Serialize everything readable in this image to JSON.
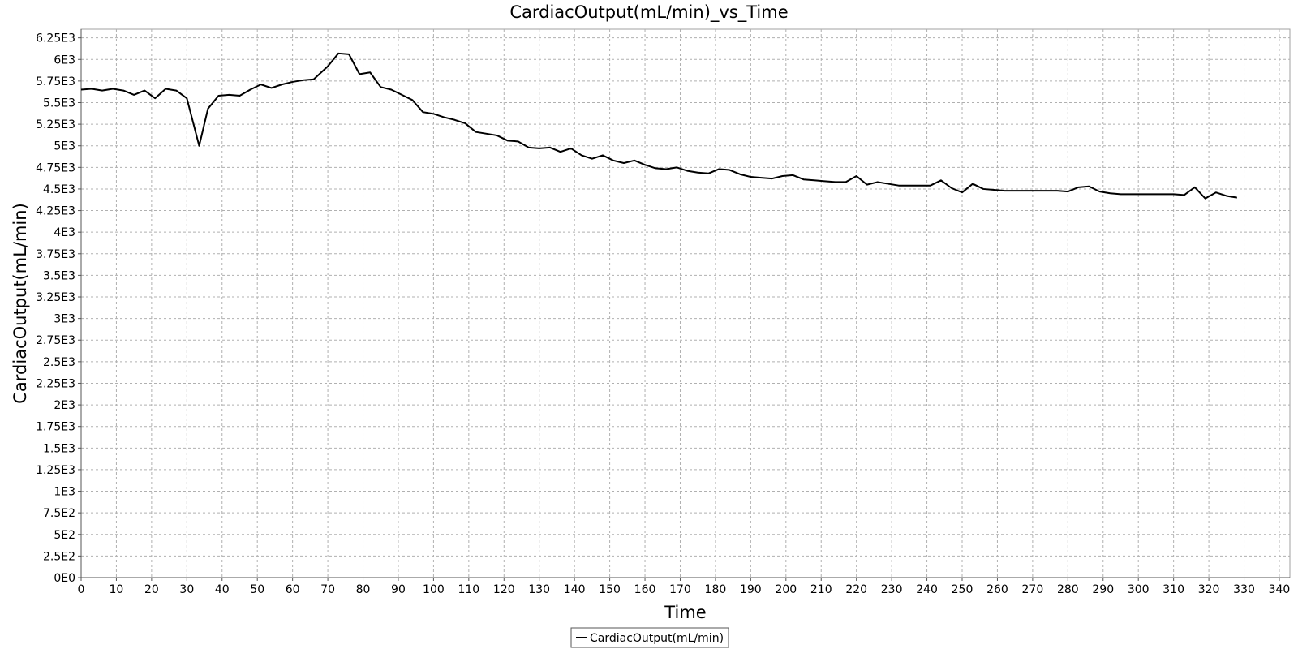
{
  "chart_data": {
    "type": "line",
    "title": "CardiacOutput(mL/min)_vs_Time",
    "xlabel": "Time",
    "ylabel": "CardiacOutput(mL/min)",
    "xlim": [
      0,
      343
    ],
    "ylim": [
      0,
      6350
    ],
    "x_ticks": [
      0,
      10,
      20,
      30,
      40,
      50,
      60,
      70,
      80,
      90,
      100,
      110,
      120,
      130,
      140,
      150,
      160,
      170,
      180,
      190,
      200,
      210,
      220,
      230,
      240,
      250,
      260,
      270,
      280,
      290,
      300,
      310,
      320,
      330,
      340
    ],
    "y_ticks": [
      {
        "value": 0,
        "label": "0E0"
      },
      {
        "value": 250,
        "label": "2.5E2"
      },
      {
        "value": 500,
        "label": "5E2"
      },
      {
        "value": 750,
        "label": "7.5E2"
      },
      {
        "value": 1000,
        "label": "1E3"
      },
      {
        "value": 1250,
        "label": "1.25E3"
      },
      {
        "value": 1500,
        "label": "1.5E3"
      },
      {
        "value": 1750,
        "label": "1.75E3"
      },
      {
        "value": 2000,
        "label": "2E3"
      },
      {
        "value": 2250,
        "label": "2.25E3"
      },
      {
        "value": 2500,
        "label": "2.5E3"
      },
      {
        "value": 2750,
        "label": "2.75E3"
      },
      {
        "value": 3000,
        "label": "3E3"
      },
      {
        "value": 3250,
        "label": "3.25E3"
      },
      {
        "value": 3500,
        "label": "3.5E3"
      },
      {
        "value": 3750,
        "label": "3.75E3"
      },
      {
        "value": 4000,
        "label": "4E3"
      },
      {
        "value": 4250,
        "label": "4.25E3"
      },
      {
        "value": 4500,
        "label": "4.5E3"
      },
      {
        "value": 4750,
        "label": "4.75E3"
      },
      {
        "value": 5000,
        "label": "5E3"
      },
      {
        "value": 5250,
        "label": "5.25E3"
      },
      {
        "value": 5500,
        "label": "5.5E3"
      },
      {
        "value": 5750,
        "label": "5.75E3"
      },
      {
        "value": 6000,
        "label": "6E3"
      },
      {
        "value": 6250,
        "label": "6.25E3"
      }
    ],
    "grid": true,
    "legend_position": "bottom-center",
    "series": [
      {
        "name": "CardiacOutput(mL/min)",
        "color": "#000000",
        "x": [
          0,
          3,
          6,
          9,
          12,
          15,
          18,
          21,
          24,
          27,
          30,
          33.5,
          36,
          39,
          42,
          45,
          48,
          51,
          54,
          57,
          60,
          63,
          66,
          70,
          73,
          76,
          79,
          82,
          85,
          88,
          91,
          94,
          97,
          100,
          103,
          106,
          109,
          112,
          115,
          118,
          121,
          124,
          127,
          130,
          133,
          136,
          139,
          142,
          145,
          148,
          151,
          154,
          157,
          160,
          163,
          166,
          169,
          172,
          175,
          178,
          181,
          184,
          187,
          190,
          193,
          196,
          199,
          202,
          205,
          208,
          211,
          214,
          217,
          220,
          223,
          226,
          229,
          232,
          235,
          238,
          241,
          244,
          247,
          250,
          253,
          256,
          259,
          262,
          265,
          268,
          271,
          274,
          277,
          280,
          283,
          286,
          289,
          292,
          295,
          298,
          301,
          304,
          307,
          310,
          313,
          316,
          319,
          322,
          325,
          328
        ],
        "y": [
          5650,
          5660,
          5640,
          5660,
          5640,
          5590,
          5640,
          5550,
          5660,
          5640,
          5550,
          5000,
          5430,
          5580,
          5590,
          5580,
          5650,
          5710,
          5670,
          5710,
          5740,
          5760,
          5770,
          5920,
          6070,
          6060,
          5830,
          5850,
          5680,
          5650,
          5590,
          5530,
          5390,
          5370,
          5330,
          5300,
          5260,
          5160,
          5140,
          5120,
          5060,
          5050,
          4980,
          4970,
          4980,
          4930,
          4970,
          4890,
          4850,
          4890,
          4830,
          4800,
          4830,
          4780,
          4740,
          4730,
          4750,
          4710,
          4690,
          4680,
          4730,
          4720,
          4670,
          4640,
          4630,
          4620,
          4650,
          4660,
          4610,
          4600,
          4590,
          4580,
          4580,
          4650,
          4550,
          4580,
          4560,
          4540,
          4540,
          4540,
          4540,
          4600,
          4510,
          4460,
          4560,
          4500,
          4490,
          4480,
          4480,
          4480,
          4480,
          4480,
          4480,
          4470,
          4520,
          4530,
          4470,
          4450,
          4440,
          4440,
          4440,
          4440,
          4440,
          4440,
          4430,
          4520,
          4390,
          4460,
          4420,
          4400
        ]
      }
    ]
  }
}
